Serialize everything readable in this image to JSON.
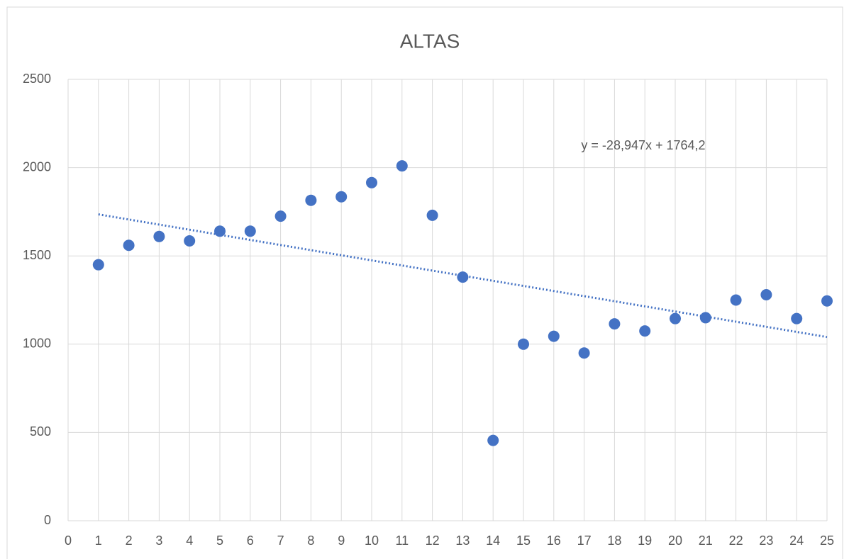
{
  "chart_data": {
    "type": "scatter",
    "title": "ALTAS",
    "x": [
      1,
      2,
      3,
      4,
      5,
      6,
      7,
      8,
      9,
      10,
      11,
      12,
      13,
      14,
      15,
      16,
      17,
      18,
      19,
      20,
      21,
      22,
      23,
      24,
      25
    ],
    "series": [
      {
        "color": "#4472c4",
        "values": [
          1450,
          1560,
          1610,
          1585,
          1640,
          1640,
          1725,
          1815,
          1835,
          1915,
          2010,
          1730,
          1380,
          455,
          1000,
          1045,
          950,
          1115,
          1075,
          1145,
          1150,
          1250,
          1280,
          1145,
          1245
        ]
      }
    ],
    "trendline": {
      "slope": -28.947,
      "intercept": 1764.2,
      "label": "y = -28,947x + 1764,2"
    },
    "xlim": [
      0,
      25
    ],
    "xticks": [
      0,
      1,
      2,
      3,
      4,
      5,
      6,
      7,
      8,
      9,
      10,
      11,
      12,
      13,
      14,
      15,
      16,
      17,
      18,
      19,
      20,
      21,
      22,
      23,
      24,
      25
    ],
    "ylim": [
      0,
      2500
    ],
    "yticks": [
      0,
      500,
      1000,
      1500,
      2000,
      2500
    ],
    "grid": true
  }
}
